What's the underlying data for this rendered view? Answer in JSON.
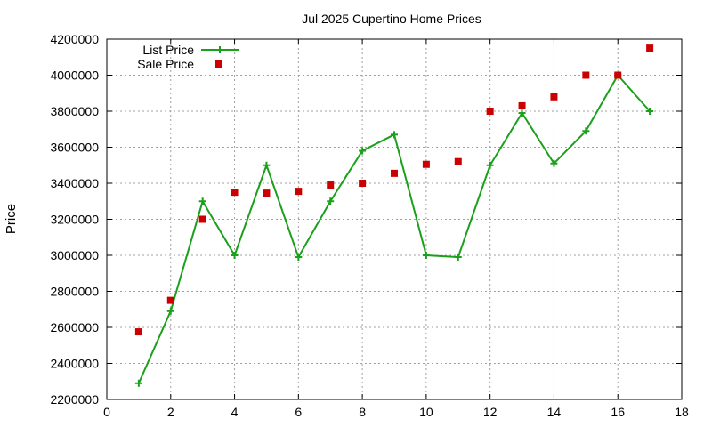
{
  "chart_data": {
    "type": "line",
    "title": "Jul 2025 Cupertino Home Prices",
    "xlabel": "",
    "ylabel": "Price",
    "xlim": [
      0,
      18
    ],
    "ylim": [
      2200000,
      4200000
    ],
    "xticks": [
      0,
      2,
      4,
      6,
      8,
      10,
      12,
      14,
      16,
      18
    ],
    "yticks": [
      2200000,
      2400000,
      2600000,
      2800000,
      3000000,
      3200000,
      3400000,
      3600000,
      3800000,
      4000000,
      4200000
    ],
    "grid": true,
    "legend_position": "top-left",
    "series": [
      {
        "name": "List Price",
        "style": "line-points",
        "color": "#1aa01a",
        "marker": "plus",
        "x": [
          1,
          2,
          3,
          4,
          5,
          6,
          7,
          8,
          9,
          10,
          11,
          12,
          13,
          14,
          15,
          16,
          17
        ],
        "y": [
          2290000,
          2690000,
          3300000,
          3000000,
          3500000,
          2990000,
          3300000,
          3580000,
          3670000,
          3000000,
          2990000,
          3500000,
          3790000,
          3510000,
          3690000,
          4000000,
          3800000
        ]
      },
      {
        "name": "Sale Price",
        "style": "points",
        "color": "#cc0000",
        "marker": "square",
        "x": [
          1,
          2,
          3,
          4,
          5,
          6,
          7,
          8,
          9,
          10,
          11,
          12,
          13,
          14,
          15,
          16,
          17
        ],
        "y": [
          2575000,
          2750000,
          3200000,
          3350000,
          3345000,
          3355000,
          3390000,
          3400000,
          3455000,
          3505000,
          3520000,
          3800000,
          3830000,
          3880000,
          4000000,
          4000000,
          4150000
        ]
      }
    ]
  }
}
